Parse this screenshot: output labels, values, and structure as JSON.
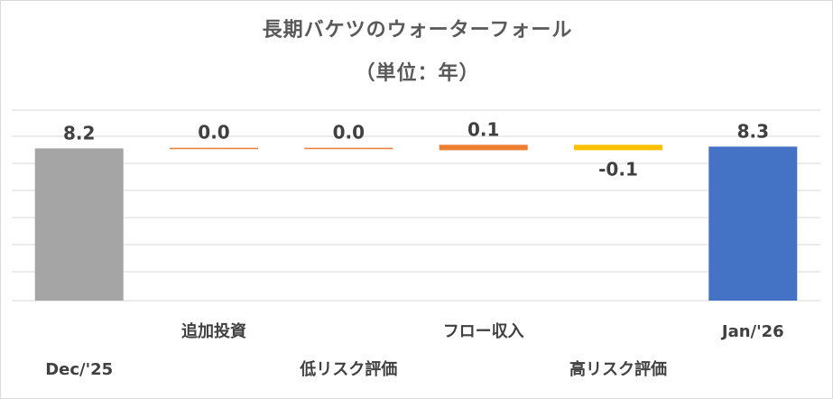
{
  "chart_data": {
    "type": "bar",
    "subtype": "waterfall",
    "title": "長期バケツのウォーターフォール",
    "subtitle": "（単位：年）",
    "categories": [
      "Dec/'25",
      "追加投資",
      "低リスク評価",
      "フロー収入",
      "高リスク評価",
      "Jan/'26"
    ],
    "values": [
      8.2,
      0.0,
      0.0,
      0.1,
      -0.1,
      8.3
    ],
    "data_labels": [
      "8.2",
      "0.0",
      "0.0",
      "0.1",
      "-0.1",
      "8.3"
    ],
    "bar_kinds": [
      "total",
      "delta",
      "delta",
      "delta",
      "delta",
      "total"
    ],
    "colors": [
      "#a5a5a5",
      "#ed7d31",
      "#ed7d31",
      "#ed7d31",
      "#ffc000",
      "#4472c4"
    ],
    "ylim": [
      0,
      8.7
    ],
    "grid": true,
    "legend": "none"
  }
}
